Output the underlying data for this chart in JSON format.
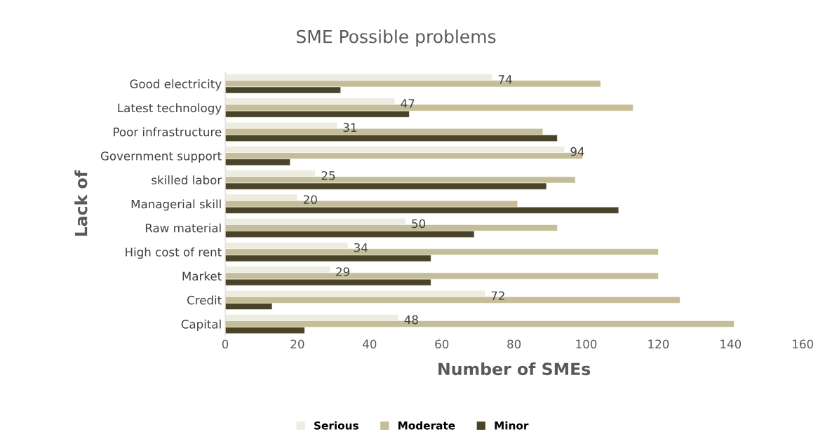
{
  "chart_data": {
    "type": "bar",
    "orientation": "horizontal",
    "title": "SME Possible problems",
    "xlabel": "Number of SMEs",
    "ylabel": "Lack of",
    "categories": [
      "Good electricity",
      "Latest technology",
      "Poor infrastructure",
      "Government support",
      "skilled labor",
      "Managerial skill",
      "Raw material",
      "High cost of rent",
      "Market",
      "Credit",
      "Capital"
    ],
    "series": [
      {
        "name": "Serious",
        "color": "#eeece1",
        "values": [
          74,
          47,
          31,
          94,
          25,
          20,
          50,
          34,
          29,
          72,
          48
        ],
        "value_labels": [
          "74",
          "47",
          "31",
          "94",
          "25",
          "20",
          "50",
          "34",
          "29",
          "72",
          "48"
        ]
      },
      {
        "name": "Moderate",
        "color": "#c4bd97",
        "values": [
          104,
          113,
          88,
          99,
          97,
          81,
          92,
          120,
          120,
          126,
          141
        ]
      },
      {
        "name": "Minor",
        "color": "#494429",
        "values": [
          32,
          51,
          92,
          18,
          89,
          109,
          69,
          57,
          57,
          13,
          22
        ]
      }
    ],
    "xlim": [
      0,
      160
    ],
    "xticks": [
      0,
      20,
      40,
      60,
      80,
      100,
      120,
      140,
      160
    ],
    "grid": false,
    "legend": "bottom"
  }
}
